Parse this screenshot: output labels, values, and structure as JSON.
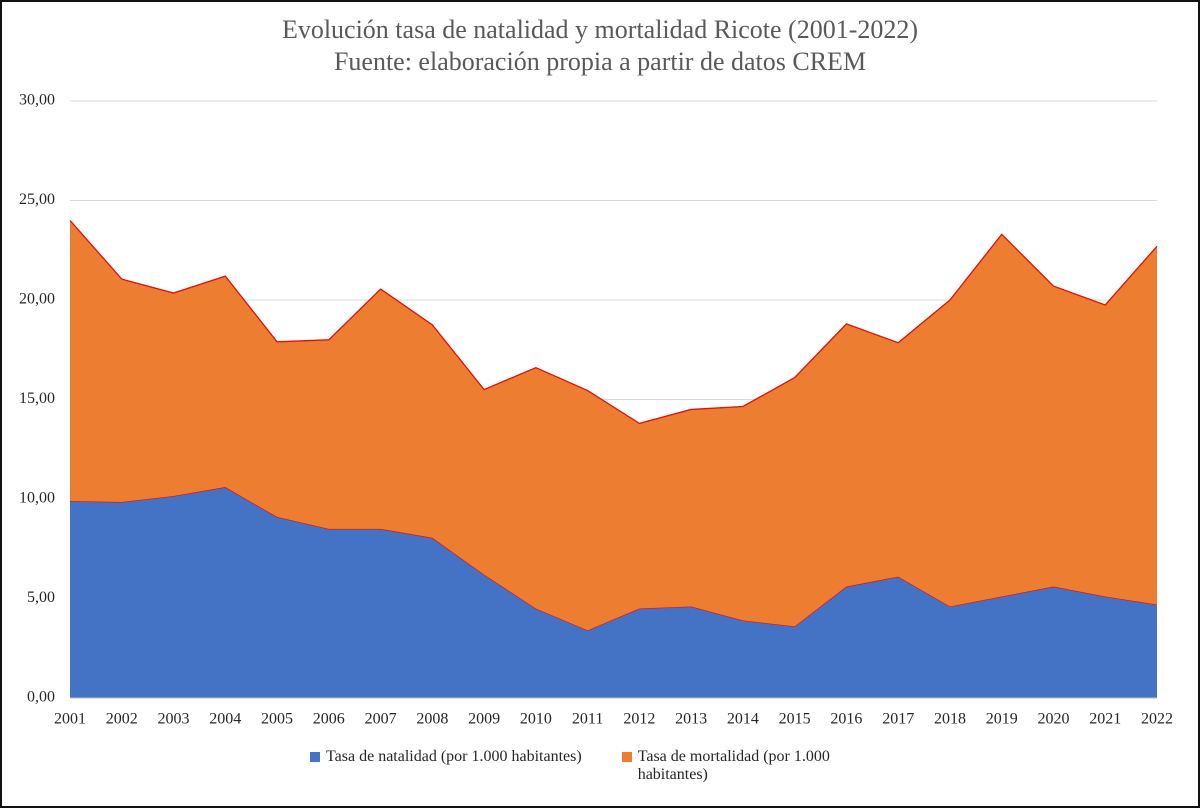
{
  "chart_data": {
    "type": "stacked_area",
    "title": "Evolución tasa de natalidad y mortalidad Ricote (2001-2022)",
    "subtitle": "Fuente: elaboración propia a partir de datos CREM",
    "categories": [
      "2001",
      "2002",
      "2003",
      "2004",
      "2005",
      "2006",
      "2007",
      "2008",
      "2009",
      "2010",
      "2011",
      "2012",
      "2013",
      "2014",
      "2015",
      "2016",
      "2017",
      "2018",
      "2019",
      "2020",
      "2021",
      "2022"
    ],
    "series": [
      {
        "name": "Tasa de natalidad (por 1.000 habitantes)",
        "color": "#4472c4",
        "values": [
          9.9,
          9.85,
          10.15,
          10.6,
          9.1,
          8.5,
          8.5,
          8.05,
          6.2,
          4.5,
          3.4,
          4.5,
          4.6,
          3.9,
          3.6,
          5.6,
          6.1,
          4.6,
          5.1,
          5.6,
          5.1,
          4.7
        ]
      },
      {
        "name": "Tasa de mortalidad (por 1.000 habitantes)",
        "color": "#ed7d31",
        "values": [
          14.1,
          11.2,
          10.2,
          10.6,
          8.8,
          9.5,
          12.05,
          10.7,
          9.3,
          12.1,
          12.05,
          9.3,
          9.9,
          10.75,
          12.5,
          13.2,
          11.75,
          15.4,
          18.2,
          15.1,
          14.65,
          18.0
        ]
      }
    ],
    "edge_color": "#e01010",
    "ylim": [
      0,
      30
    ],
    "yticks": [
      {
        "value": 0,
        "label": "0,00"
      },
      {
        "value": 5,
        "label": "5,00"
      },
      {
        "value": 10,
        "label": "10,00"
      },
      {
        "value": 15,
        "label": "15,00"
      },
      {
        "value": 20,
        "label": "20,00"
      },
      {
        "value": 25,
        "label": "25,00"
      },
      {
        "value": 30,
        "label": "30,00"
      }
    ],
    "grid": true
  }
}
